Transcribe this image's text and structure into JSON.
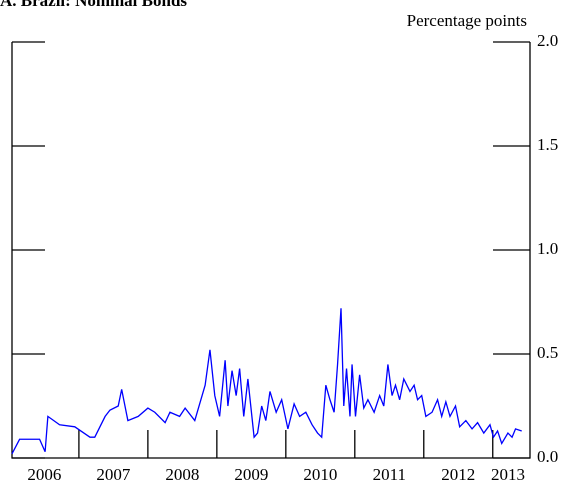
{
  "chart_data": {
    "type": "line",
    "title": "A. Brazil: Nominal Bonds",
    "y_axis_label": "Percentage points",
    "x": [
      2006.03,
      2006.14,
      2006.43,
      2006.51,
      2006.55,
      2006.72,
      2006.94,
      2007.16,
      2007.23,
      2007.38,
      2007.45,
      2007.57,
      2007.62,
      2007.71,
      2007.86,
      2008.0,
      2008.1,
      2008.25,
      2008.32,
      2008.46,
      2008.54,
      2008.68,
      2008.83,
      2008.9,
      2008.97,
      2009.04,
      2009.12,
      2009.16,
      2009.22,
      2009.28,
      2009.33,
      2009.39,
      2009.45,
      2009.54,
      2009.59,
      2009.65,
      2009.71,
      2009.77,
      2009.86,
      2009.94,
      2010.03,
      2010.12,
      2010.2,
      2010.29,
      2010.38,
      2010.46,
      2010.52,
      2010.58,
      2010.64,
      2010.7,
      2010.75,
      2010.8,
      2010.84,
      2010.88,
      2010.93,
      2010.96,
      2011.01,
      2011.07,
      2011.13,
      2011.19,
      2011.28,
      2011.36,
      2011.42,
      2011.48,
      2011.54,
      2011.59,
      2011.65,
      2011.71,
      2011.8,
      2011.86,
      2011.91,
      2011.97,
      2012.03,
      2012.12,
      2012.2,
      2012.26,
      2012.32,
      2012.38,
      2012.46,
      2012.52,
      2012.61,
      2012.7,
      2012.78,
      2012.87,
      2012.96,
      2013.01,
      2013.07,
      2013.13,
      2013.22,
      2013.28,
      2013.33,
      2013.42
    ],
    "series": [
      {
        "color": "#0000ff",
        "values": [
          0.02,
          0.09,
          0.09,
          0.03,
          0.2,
          0.16,
          0.15,
          0.1,
          0.1,
          0.2,
          0.23,
          0.25,
          0.33,
          0.18,
          0.2,
          0.24,
          0.22,
          0.17,
          0.22,
          0.2,
          0.24,
          0.18,
          0.35,
          0.52,
          0.3,
          0.2,
          0.47,
          0.25,
          0.42,
          0.3,
          0.43,
          0.2,
          0.38,
          0.1,
          0.12,
          0.25,
          0.18,
          0.32,
          0.22,
          0.28,
          0.14,
          0.26,
          0.2,
          0.22,
          0.16,
          0.12,
          0.1,
          0.35,
          0.28,
          0.22,
          0.45,
          0.72,
          0.25,
          0.43,
          0.2,
          0.45,
          0.2,
          0.4,
          0.24,
          0.28,
          0.22,
          0.3,
          0.25,
          0.45,
          0.3,
          0.35,
          0.28,
          0.38,
          0.32,
          0.35,
          0.28,
          0.3,
          0.2,
          0.22,
          0.28,
          0.2,
          0.27,
          0.2,
          0.25,
          0.15,
          0.18,
          0.14,
          0.17,
          0.12,
          0.16,
          0.1,
          0.13,
          0.07,
          0.12,
          0.1,
          0.14,
          0.13
        ]
      }
    ],
    "xlim": [
      2006.03,
      2013.54
    ],
    "xticks": [
      2006,
      2007,
      2008,
      2009,
      2010,
      2011,
      2012,
      2013
    ],
    "ylim": [
      0,
      2
    ],
    "yticks": [
      {
        "value": 0,
        "label": "0.0"
      },
      {
        "value": 0.5,
        "label": "0.5"
      },
      {
        "value": 1,
        "label": "1.0"
      },
      {
        "value": 1.5,
        "label": "1.5"
      },
      {
        "value": 2,
        "label": "2.0"
      }
    ]
  }
}
